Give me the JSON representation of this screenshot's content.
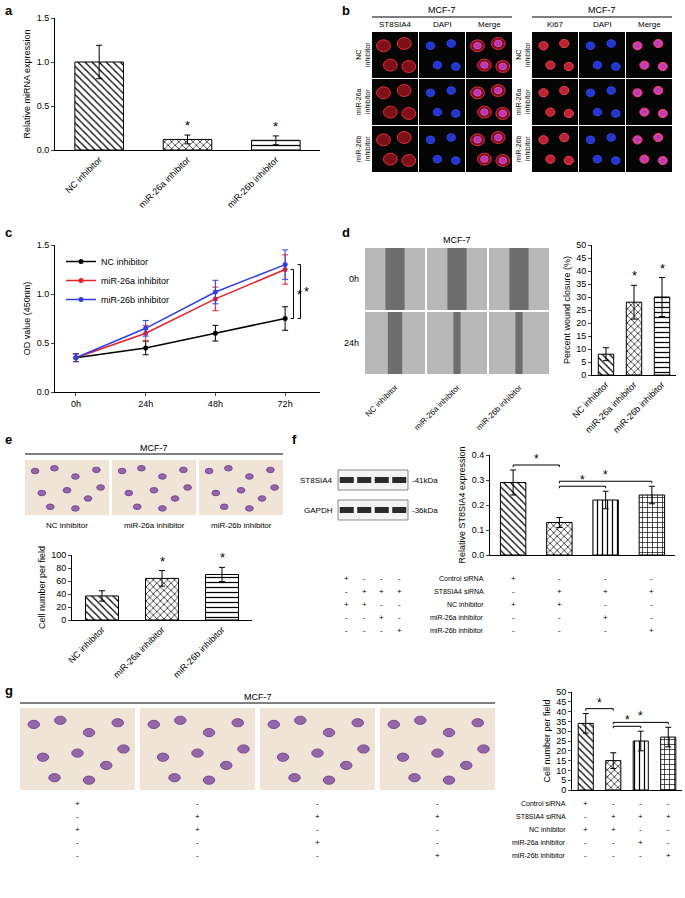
{
  "chart_data": [
    {
      "panel": "a",
      "type": "bar",
      "categories": [
        "NC inhibitor",
        "miR-26a inhibitor",
        "miR-26b inhibitor"
      ],
      "values": [
        1.0,
        0.12,
        0.11
      ],
      "errors": [
        0.19,
        0.05,
        0.05
      ],
      "significance": [
        null,
        "*",
        "*"
      ],
      "y_label": "Relative miRNA expression",
      "ylim": [
        0,
        1.5
      ],
      "yticks": [
        {
          "value": 0,
          "label": "0.0"
        },
        0.5,
        {
          "value": 1,
          "label": "1.0"
        },
        1.5
      ],
      "grid": false
    },
    {
      "panel": "c",
      "type": "line",
      "categories": [
        "0h",
        "24h",
        "48h",
        "72h"
      ],
      "series": [
        {
          "name": "NC inhibitor",
          "color": "#000000",
          "marker": "circle",
          "values": [
            0.35,
            0.45,
            0.6,
            0.75
          ],
          "errors": [
            0.04,
            0.07,
            0.08,
            0.12
          ]
        },
        {
          "name": "miR-26a inhibitor",
          "color": "#e8202a",
          "marker": "circle",
          "values": [
            0.35,
            0.6,
            0.95,
            1.25
          ],
          "errors": [
            0.04,
            0.08,
            0.12,
            0.15
          ]
        },
        {
          "name": "miR-26b inhibitor",
          "color": "#2f3fe0",
          "marker": "circle",
          "values": [
            0.35,
            0.65,
            1.02,
            1.3
          ],
          "errors": [
            0.04,
            0.08,
            0.12,
            0.15
          ]
        }
      ],
      "y_label": "OD value (450nm)",
      "ylim": [
        0,
        1.5
      ],
      "yticks": [
        {
          "value": 0,
          "label": "0.0"
        },
        0.5,
        {
          "value": 1,
          "label": "1.0"
        },
        1.5
      ],
      "legend": "top left",
      "comparisons": [
        {
          "series": [
            0,
            1
          ],
          "at": "72h",
          "label": "*"
        },
        {
          "series": [
            0,
            2
          ],
          "at": "72h",
          "label": "*"
        }
      ],
      "grid": false
    },
    {
      "panel": "d",
      "type": "bar",
      "categories": [
        "NC inhibitor",
        "miR-26a inhibitor",
        "miR-26b inhibitor"
      ],
      "values": [
        8,
        28,
        30
      ],
      "errors": [
        2.5,
        6.5,
        7.5
      ],
      "significance": [
        null,
        "*",
        "*"
      ],
      "y_label": "Percent wound closure (%)",
      "ylim": [
        0,
        50
      ],
      "yticks": [
        0,
        5,
        10,
        15,
        20,
        25,
        30,
        35,
        40,
        45,
        50
      ],
      "grid": false
    },
    {
      "panel": "e",
      "type": "bar",
      "categories": [
        "NC inhibitor",
        "miR-26a inhibitor",
        "miR-26b inhibitor"
      ],
      "values": [
        37,
        64,
        70
      ],
      "errors": [
        8,
        12,
        11
      ],
      "significance": [
        null,
        "*",
        "*"
      ],
      "y_label": "Cell number per field",
      "ylim": [
        0,
        100
      ],
      "yticks": [
        0,
        20,
        40,
        60,
        80,
        100
      ],
      "grid": false
    },
    {
      "panel": "f",
      "type": "bar",
      "categories": [
        null,
        null,
        null,
        null
      ],
      "values": [
        0.29,
        0.13,
        0.22,
        0.24
      ],
      "errors": [
        0.05,
        0.02,
        0.035,
        0.035
      ],
      "y_label": "Relative ST8SIA4 expression",
      "ylim": [
        0,
        0.4
      ],
      "yticks": [
        {
          "value": 0,
          "label": "0.0"
        },
        0.1,
        0.2,
        0.3,
        0.4
      ],
      "tick_labels": "y",
      "conditions": [
        {
          "name": "Control siRNA",
          "signs": [
            "+",
            "-",
            "-",
            "-"
          ]
        },
        {
          "name": "ST8SIA4 siRNA",
          "signs": [
            "-",
            "+",
            "+",
            "+"
          ]
        },
        {
          "name": "NC inhibitor",
          "signs": [
            "+",
            "+",
            "-",
            "-"
          ]
        },
        {
          "name": "miR-26a inhibitor",
          "signs": [
            "-",
            "-",
            "+",
            "-"
          ]
        },
        {
          "name": "miR-26b inhibitor",
          "signs": [
            "-",
            "-",
            "-",
            "+"
          ]
        }
      ],
      "comparisons": [
        {
          "bars": [
            0,
            1
          ],
          "label": "*"
        },
        {
          "bars": [
            1,
            2
          ],
          "label": "*"
        },
        {
          "bars": [
            1,
            3
          ],
          "label": "*"
        }
      ],
      "grid": false
    },
    {
      "panel": "g",
      "type": "bar",
      "categories": [
        null,
        null,
        null,
        null
      ],
      "values": [
        34,
        15,
        25,
        27
      ],
      "errors": [
        5,
        4,
        5,
        5
      ],
      "y_label": "Cell number per field",
      "ylim": [
        0,
        50
      ],
      "yticks": [
        0,
        5,
        10,
        15,
        20,
        25,
        30,
        35,
        40,
        45,
        50
      ],
      "tick_labels": "y",
      "conditions": [
        {
          "name": "Control siRNA",
          "signs": [
            "+",
            "-",
            "-",
            "-"
          ]
        },
        {
          "name": "ST8SIA4 siRNA",
          "signs": [
            "-",
            "+",
            "+",
            "+"
          ]
        },
        {
          "name": "NC inhibitor",
          "signs": [
            "+",
            "+",
            "-",
            "-"
          ]
        },
        {
          "name": "miR-26a inhibitor",
          "signs": [
            "-",
            "-",
            "+",
            "-"
          ]
        },
        {
          "name": "miR-26b inhibitor",
          "signs": [
            "-",
            "-",
            "-",
            "+"
          ]
        }
      ],
      "comparisons": [
        {
          "bars": [
            0,
            1
          ],
          "label": "*"
        },
        {
          "bars": [
            1,
            2
          ],
          "label": "*"
        },
        {
          "bars": [
            1,
            3
          ],
          "label": "*"
        }
      ],
      "grid": false
    }
  ],
  "images": {
    "b": {
      "panel": "b",
      "groups": [
        {
          "title": "MCF-7",
          "columns": [
            "ST8SIA4",
            "DAPI",
            "Merge"
          ],
          "rows": [
            "NC inhibitor",
            "miR-26a inhibitor",
            "miR-26b inhibitor"
          ]
        },
        {
          "title": "MCF-7",
          "columns": [
            "Ki67",
            "DAPI",
            "Merge"
          ],
          "rows": [
            "NC inhibitor",
            "miR-26a inhibitor",
            "miR-26b inhibitor"
          ]
        }
      ]
    },
    "d": {
      "title": "MCF-7",
      "rows": [
        "0h",
        "24h"
      ],
      "columns": [
        "NC inhibitor",
        "miR-26a inhibitor",
        "miR-26b inhibitor"
      ]
    },
    "e": {
      "title": "MCF-7",
      "columns": [
        "NC inhibitor",
        "miR-26a inhibitor",
        "miR-26b inhibitor"
      ]
    },
    "f": {
      "bands": [
        {
          "name": "ST8SIA4",
          "size": "-41kDa"
        },
        {
          "name": "GAPDH",
          "size": "-36kDa"
        }
      ]
    },
    "g": {
      "title": "MCF-7"
    }
  }
}
